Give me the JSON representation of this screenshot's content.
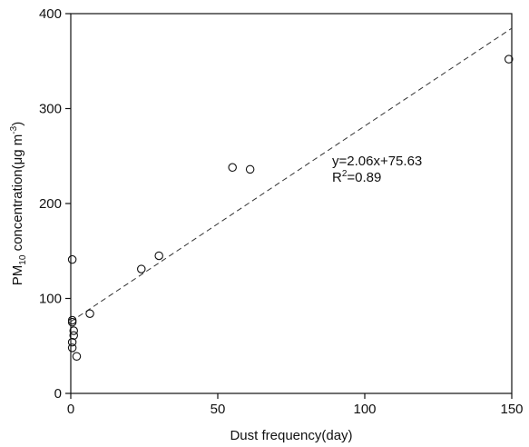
{
  "chart_data": {
    "type": "scatter",
    "title": "",
    "xlabel": "Dust frequency(day)",
    "ylabel": {
      "prefix": "PM",
      "subscript": "10",
      "middle": " concentration(μg m",
      "superscript": "-3",
      "suffix": ")"
    },
    "xlim": [
      0,
      150
    ],
    "ylim": [
      0,
      400
    ],
    "xticks": [
      0,
      50,
      100,
      150
    ],
    "yticks": [
      0,
      100,
      200,
      300,
      400
    ],
    "grid": false,
    "points": [
      {
        "x": 0.5,
        "y": 141
      },
      {
        "x": 0.5,
        "y": 77
      },
      {
        "x": 0.5,
        "y": 75
      },
      {
        "x": 0.5,
        "y": 48
      },
      {
        "x": 0.5,
        "y": 54
      },
      {
        "x": 1,
        "y": 61
      },
      {
        "x": 1,
        "y": 66
      },
      {
        "x": 2,
        "y": 39
      },
      {
        "x": 6.5,
        "y": 84
      },
      {
        "x": 24,
        "y": 131
      },
      {
        "x": 30,
        "y": 145
      },
      {
        "x": 55,
        "y": 238
      },
      {
        "x": 61,
        "y": 236
      },
      {
        "x": 149,
        "y": 352
      }
    ],
    "fit": {
      "slope": 2.06,
      "intercept": 75.63,
      "x_range": [
        0,
        150
      ],
      "style": "dashed",
      "equation": "y=2.06x+75.63",
      "r2_prefix": "R",
      "r2_sup": "2",
      "r2_suffix": "=0.89"
    },
    "colors": {
      "marker": "#111111",
      "axis": "#111111",
      "fit_line": "#333333"
    }
  }
}
